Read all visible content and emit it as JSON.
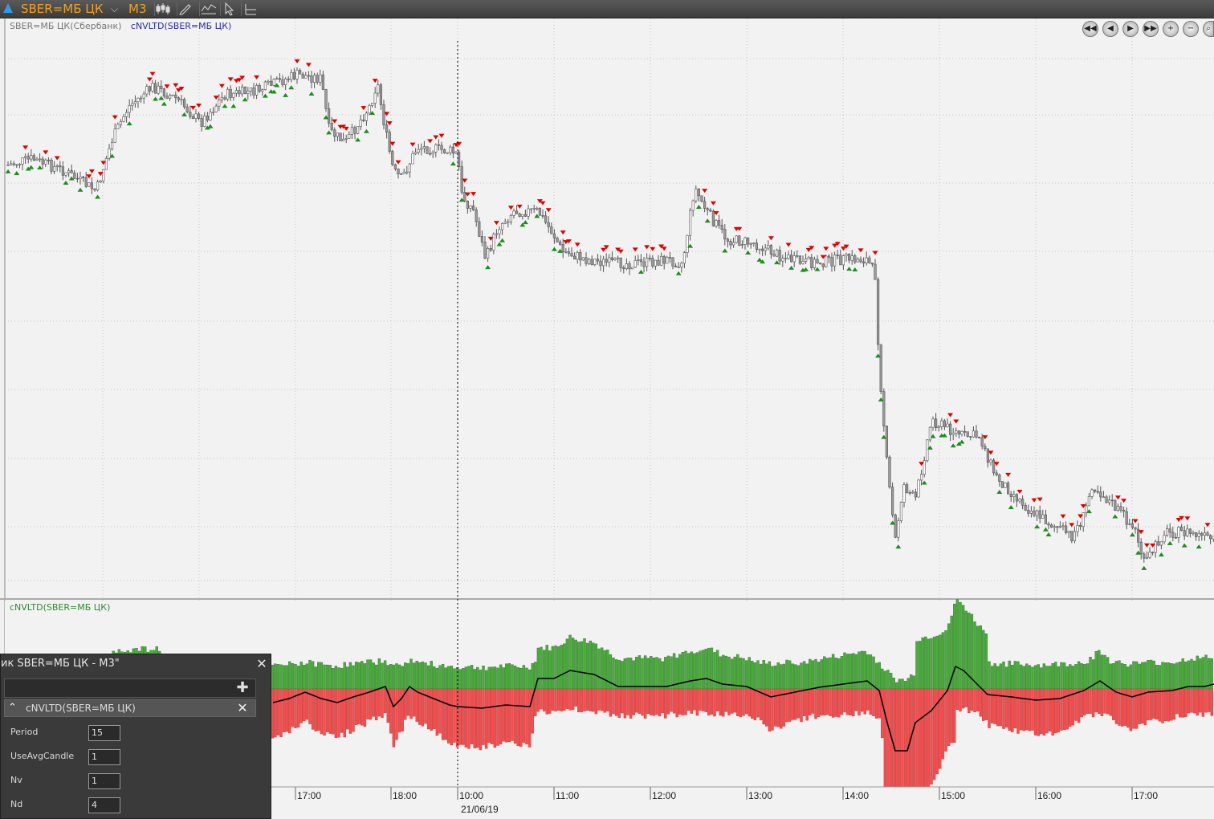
{
  "toolbar": {
    "symbol": "SBER=МБ ЦК",
    "timeframe": "M3",
    "buttons": [
      "candles-icon",
      "pencil-icon",
      "indicator-icon",
      "cursor-icon",
      "crosshair-icon"
    ]
  },
  "legend": {
    "instrument": "SBER=МБ ЦК(Сбербанк)",
    "indicator": "cNVLTD(SBER=МБ ЦК)",
    "colors": {
      "instrument": "#777777",
      "indicator": "#2a2ab0"
    }
  },
  "nav_buttons": [
    "rewind-icon",
    "back-icon",
    "forward-icon",
    "fast-forward-icon",
    "zoom-in-icon",
    "zoom-out-icon"
  ],
  "subpanel_title": "cNVLTD(SBER=МБ ЦК)",
  "x_axis": {
    "labels": [
      "17:00",
      "18:00",
      "10:00",
      "11:00",
      "12:00",
      "13:00",
      "14:00",
      "15:00",
      "16:00",
      "17:00"
    ],
    "date_label": "21/06/19"
  },
  "colors": {
    "up": "#1e8c1e",
    "down": "#e00000",
    "pos_bar": "#4caa3c",
    "neg_bar": "#f05050"
  },
  "panel": {
    "title": "ик SBER=МБ ЦК - M3\"",
    "indicator_name": "cNVLTD(SBER=МБ ЦК)",
    "params": [
      {
        "label": "Period",
        "value": "15"
      },
      {
        "label": "UseAvgCandle",
        "value": "1"
      },
      {
        "label": "Nv",
        "value": "1"
      },
      {
        "label": "Nd",
        "value": "4"
      }
    ]
  },
  "chart_data": {
    "type": "candlestick",
    "price_path": [
      [
        0,
        185
      ],
      [
        40,
        175
      ],
      [
        80,
        190
      ],
      [
        120,
        215
      ],
      [
        140,
        150
      ],
      [
        160,
        110
      ],
      [
        190,
        85
      ],
      [
        220,
        100
      ],
      [
        250,
        130
      ],
      [
        280,
        95
      ],
      [
        320,
        90
      ],
      [
        370,
        70
      ],
      [
        400,
        75
      ],
      [
        410,
        140
      ],
      [
        430,
        155
      ],
      [
        460,
        110
      ],
      [
        470,
        80
      ],
      [
        480,
        140
      ],
      [
        490,
        190
      ],
      [
        500,
        200
      ],
      [
        520,
        160
      ],
      [
        560,
        165
      ],
      [
        570,
        170
      ],
      [
        575,
        220
      ],
      [
        590,
        240
      ],
      [
        605,
        300
      ],
      [
        620,
        260
      ],
      [
        640,
        240
      ],
      [
        670,
        240
      ],
      [
        690,
        270
      ],
      [
        700,
        290
      ],
      [
        730,
        300
      ],
      [
        760,
        305
      ],
      [
        800,
        305
      ],
      [
        830,
        300
      ],
      [
        850,
        305
      ],
      [
        865,
        210
      ],
      [
        880,
        240
      ],
      [
        905,
        275
      ],
      [
        940,
        280
      ],
      [
        970,
        295
      ],
      [
        1000,
        305
      ],
      [
        1050,
        300
      ],
      [
        1080,
        300
      ],
      [
        1090,
        320
      ],
      [
        1095,
        430
      ],
      [
        1105,
        560
      ],
      [
        1115,
        650
      ],
      [
        1125,
        580
      ],
      [
        1140,
        600
      ],
      [
        1160,
        500
      ],
      [
        1180,
        510
      ],
      [
        1200,
        520
      ],
      [
        1220,
        520
      ],
      [
        1240,
        570
      ],
      [
        1260,
        590
      ],
      [
        1280,
        610
      ],
      [
        1310,
        630
      ],
      [
        1335,
        645
      ],
      [
        1350,
        620
      ],
      [
        1360,
        580
      ],
      [
        1380,
        600
      ],
      [
        1400,
        620
      ],
      [
        1415,
        640
      ],
      [
        1425,
        680
      ],
      [
        1450,
        640
      ],
      [
        1480,
        640
      ],
      [
        1512,
        650
      ]
    ],
    "oscillator_line": [
      [
        340,
        875
      ],
      [
        360,
        870
      ],
      [
        380,
        862
      ],
      [
        400,
        870
      ],
      [
        420,
        875
      ],
      [
        440,
        868
      ],
      [
        460,
        862
      ],
      [
        480,
        855
      ],
      [
        490,
        880
      ],
      [
        500,
        870
      ],
      [
        510,
        855
      ],
      [
        520,
        862
      ],
      [
        540,
        870
      ],
      [
        560,
        878
      ],
      [
        570,
        880
      ],
      [
        600,
        882
      ],
      [
        630,
        878
      ],
      [
        660,
        880
      ],
      [
        670,
        845
      ],
      [
        690,
        845
      ],
      [
        710,
        835
      ],
      [
        740,
        840
      ],
      [
        770,
        855
      ],
      [
        800,
        855
      ],
      [
        830,
        855
      ],
      [
        860,
        848
      ],
      [
        880,
        845
      ],
      [
        900,
        852
      ],
      [
        930,
        855
      ],
      [
        960,
        868
      ],
      [
        990,
        862
      ],
      [
        1020,
        856
      ],
      [
        1050,
        852
      ],
      [
        1080,
        848
      ],
      [
        1095,
        860
      ],
      [
        1105,
        900
      ],
      [
        1115,
        935
      ],
      [
        1130,
        935
      ],
      [
        1140,
        900
      ],
      [
        1160,
        885
      ],
      [
        1180,
        860
      ],
      [
        1190,
        830
      ],
      [
        1200,
        835
      ],
      [
        1215,
        850
      ],
      [
        1230,
        865
      ],
      [
        1260,
        868
      ],
      [
        1290,
        872
      ],
      [
        1320,
        870
      ],
      [
        1350,
        860
      ],
      [
        1370,
        848
      ],
      [
        1390,
        862
      ],
      [
        1410,
        868
      ],
      [
        1430,
        862
      ],
      [
        1460,
        860
      ],
      [
        1480,
        855
      ],
      [
        1500,
        855
      ],
      [
        1512,
        852
      ]
    ]
  }
}
